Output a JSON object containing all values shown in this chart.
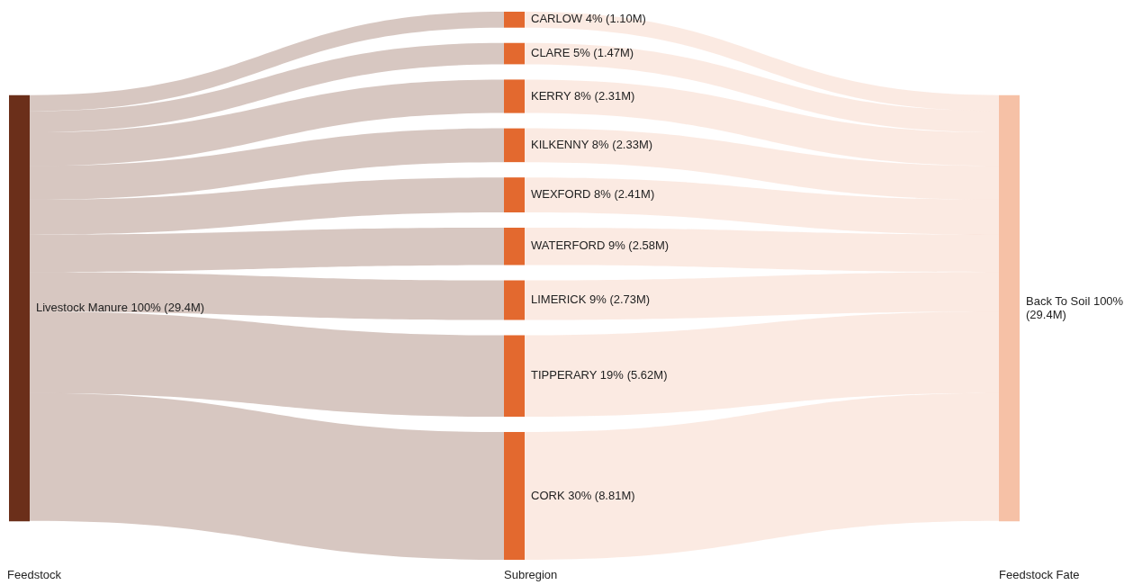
{
  "chart_data": {
    "type": "other",
    "categories": [
      "Livestock Manure 100%",
      "CARLOW 4%",
      "CLARE 5%",
      "KERRY 8%",
      "KILKENNY 8%",
      "WEXFORD 8%",
      "WATERFORD 9%",
      "LIMERICK 9%",
      "TIPPERARY 19%",
      "CORK 30%",
      "Back To Soil 100%"
    ],
    "values": [
      29.4,
      1.1,
      1.47,
      2.31,
      2.33,
      2.41,
      2.58,
      2.73,
      5.62,
      8.81,
      29.4
    ],
    "value_labels": [
      "(29.4M)",
      "(1.10M)",
      "(1.47M)",
      "(2.31M)",
      "(2.33M)",
      "(2.41M)",
      "(2.58M)",
      "(2.73M)",
      "(5.62M)",
      "(8.81M)",
      "(29.4M)"
    ],
    "colors": [
      "#6b2f1a",
      "#e3692f",
      "#e3692f",
      "#e3692f",
      "#e3692f",
      "#e3692f",
      "#e3692f",
      "#e3692f",
      "#e3692f",
      "#e3692f",
      "#f6c1a6"
    ],
    "annotations": [
      "Feedstock",
      "Subregion",
      "Feedstock Fate"
    ]
  }
}
